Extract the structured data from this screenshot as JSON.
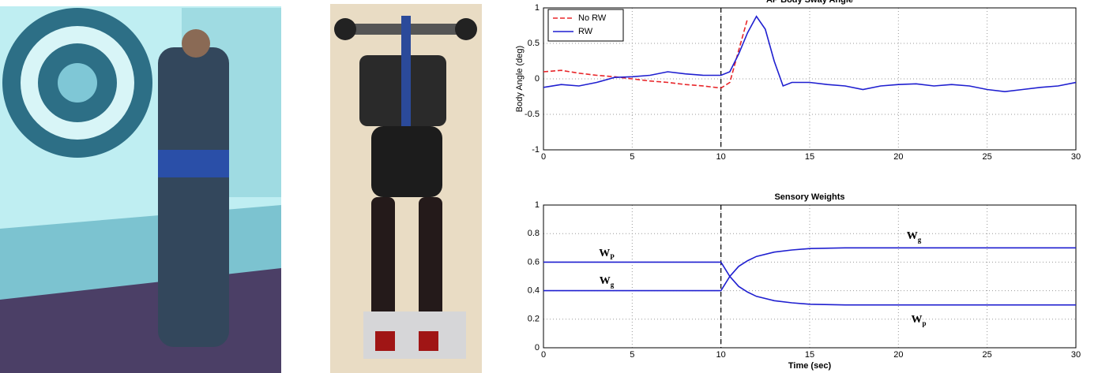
{
  "chart_data": [
    {
      "type": "line",
      "title": "AP Body Sway Angle",
      "y_label": "Body Angle (deg)",
      "x": [
        0,
        1,
        2,
        3,
        4,
        5,
        6,
        7,
        8,
        9,
        10,
        10.5,
        11,
        11.5,
        12,
        12.5,
        13,
        13.5,
        14,
        15,
        16,
        17,
        18,
        19,
        20,
        21,
        22,
        23,
        24,
        25,
        26,
        27,
        28,
        29,
        30
      ],
      "series": [
        {
          "name": "No RW",
          "color": "#e8262a",
          "dash": true,
          "values": [
            0.1,
            0.12,
            0.08,
            0.05,
            0.03,
            0.0,
            -0.03,
            -0.05,
            -0.08,
            -0.1,
            -0.13,
            -0.05,
            0.4,
            0.85,
            null,
            null,
            null,
            null,
            null,
            null,
            null,
            null,
            null,
            null,
            null,
            null,
            null,
            null,
            null,
            null,
            null,
            null,
            null,
            null,
            null
          ]
        },
        {
          "name": "RW",
          "color": "#1f1fd0",
          "dash": false,
          "values": [
            -0.12,
            -0.08,
            -0.1,
            -0.05,
            0.02,
            0.03,
            0.05,
            0.1,
            0.07,
            0.05,
            0.05,
            0.1,
            0.35,
            0.65,
            0.88,
            0.7,
            0.25,
            -0.1,
            -0.05,
            -0.05,
            -0.08,
            -0.1,
            -0.15,
            -0.1,
            -0.08,
            -0.07,
            -0.1,
            -0.08,
            -0.1,
            -0.15,
            -0.18,
            -0.15,
            -0.12,
            -0.1,
            -0.05
          ]
        }
      ],
      "xlim": [
        0,
        30
      ],
      "ylim": [
        -1,
        1
      ],
      "xticks": [
        0,
        5,
        10,
        15,
        20,
        25,
        30
      ],
      "yticks": [
        -1,
        -0.5,
        0,
        0.5,
        1
      ],
      "grid": true,
      "legend": "upper left",
      "vline": 10
    },
    {
      "type": "line",
      "title": "Sensory Weights",
      "x_label": "Time (sec)",
      "x": [
        0,
        5,
        10,
        10.5,
        11,
        11.5,
        12,
        13,
        14,
        15,
        17,
        20,
        25,
        30
      ],
      "series": [
        {
          "color": "#1f1fd0",
          "labels": [
            {
              "text": "W",
              "sub": "P"
            },
            {
              "text": "W",
              "sub": "p"
            }
          ],
          "values": [
            0.6,
            0.6,
            0.6,
            0.5,
            0.43,
            0.39,
            0.36,
            0.33,
            0.315,
            0.305,
            0.3,
            0.3,
            0.3,
            0.3
          ]
        },
        {
          "color": "#1f1fd0",
          "labels": [
            {
              "text": "W",
              "sub": "g"
            },
            {
              "text": "W",
              "sub": "g"
            }
          ],
          "values": [
            0.4,
            0.4,
            0.4,
            0.5,
            0.57,
            0.61,
            0.64,
            0.67,
            0.685,
            0.695,
            0.7,
            0.7,
            0.7,
            0.7
          ]
        }
      ],
      "xlim": [
        0,
        30
      ],
      "ylim": [
        0,
        1
      ],
      "xticks": [
        0,
        5,
        10,
        15,
        20,
        25,
        30
      ],
      "yticks": [
        0,
        0.2,
        0.4,
        0.6,
        0.8,
        1
      ],
      "grid": true,
      "vline": 10
    }
  ]
}
